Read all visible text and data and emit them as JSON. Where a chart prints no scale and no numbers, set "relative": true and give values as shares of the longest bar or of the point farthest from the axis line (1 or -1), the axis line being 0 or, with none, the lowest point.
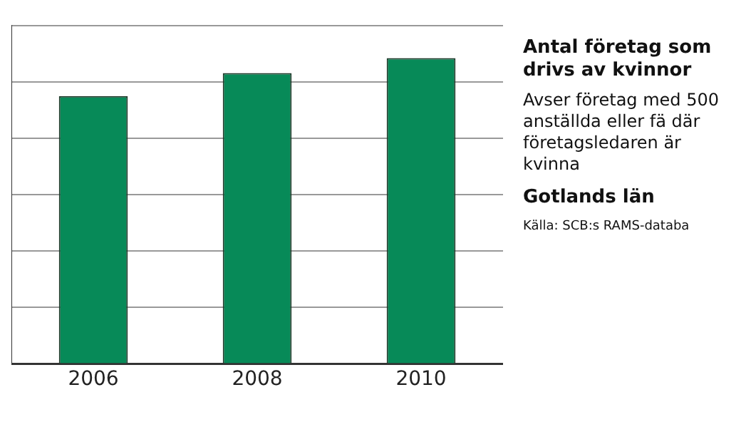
{
  "chart_data": {
    "type": "bar",
    "title": "Antal företag som drivs av kvinnor",
    "subtitle": "Avser företag med 500 anställda eller fä där företagsledaren är kvinna",
    "annotations": [
      "Gotlands län",
      "Källa: SCB:s RAMS-databa"
    ],
    "categories": [
      "2006",
      "2008",
      "2010"
    ],
    "values": [
      0.876,
      0.951,
      1
    ],
    "color": "#078a58",
    "relative": true,
    "grid": "y",
    "tick_labels": "x"
  }
}
